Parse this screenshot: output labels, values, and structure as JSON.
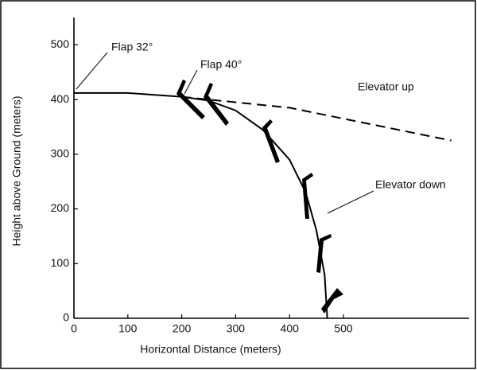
{
  "chart_data": {
    "type": "line",
    "xlabel": "Horizontal Distance (meters)",
    "ylabel": "Height above Ground (meters)",
    "xlim": [
      0,
      733
    ],
    "ylim": [
      0,
      550
    ],
    "xticks": [
      0,
      100,
      200,
      300,
      400,
      500
    ],
    "yticks": [
      0,
      100,
      200,
      300,
      400,
      500
    ],
    "grid": false,
    "series": [
      {
        "name": "Elevator down",
        "color": "#000000",
        "dash": false,
        "x": [
          0,
          100,
          200,
          250,
          300,
          350,
          400,
          430,
          450,
          465,
          470
        ],
        "values": [
          412,
          412,
          405,
          398,
          380,
          345,
          290,
          230,
          160,
          80,
          0
        ]
      },
      {
        "name": "Elevator up",
        "color": "#000000",
        "dash": true,
        "x": [
          200,
          250,
          300,
          400,
          500,
          600,
          700
        ],
        "values": [
          405,
          400,
          395,
          385,
          365,
          345,
          325
        ]
      }
    ],
    "annotations": [
      "Flap 32°",
      "Flap 40°"
    ]
  }
}
